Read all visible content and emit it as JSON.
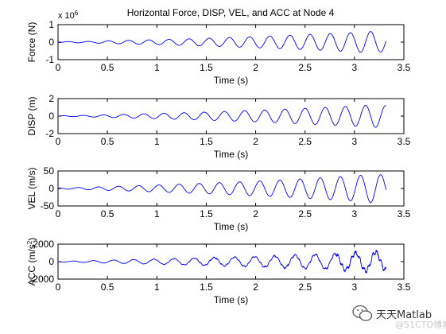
{
  "watermark": {
    "name": "天天Matlab",
    "sub": "@51CTO博客"
  },
  "colors": {
    "line": "#0000ff",
    "axis": "#000000",
    "background": "#ffffff"
  },
  "chart_data": [
    {
      "type": "line",
      "title": "Horizontal Force, DISP, VEL, and ACC at Node 4",
      "xlabel": "Time (s)",
      "ylabel": "Force (N)",
      "exponent_label": "x 10",
      "exponent_power": "6",
      "xlim": [
        0,
        3.5
      ],
      "ylim": [
        -1,
        1
      ],
      "xticks": [
        "0",
        "0.5",
        "1",
        "1.5",
        "2",
        "2.5",
        "3",
        "3.5"
      ],
      "yticks": [
        "-1",
        "0",
        "1"
      ],
      "series": [
        {
          "x": [
            0,
            0.1,
            0.2,
            0.3,
            0.4,
            0.5,
            0.75,
            1.0,
            1.25,
            1.5,
            1.75,
            2.0,
            2.25,
            2.5,
            2.75,
            3.0,
            3.2,
            3.32
          ],
          "amplitude": [
            0.02,
            0.03,
            0.04,
            0.04,
            0.06,
            0.08,
            0.11,
            0.14,
            0.18,
            0.22,
            0.27,
            0.32,
            0.37,
            0.43,
            0.49,
            0.55,
            0.62,
            0.52
          ],
          "frequency_hz": 4.9,
          "phase_rad": -1.57,
          "noise": 0.0
        }
      ]
    },
    {
      "type": "line",
      "xlabel": "Time (s)",
      "ylabel": "DISP (m)",
      "xlim": [
        0,
        3.5
      ],
      "ylim": [
        -2,
        2
      ],
      "xticks": [
        "0",
        "0.5",
        "1",
        "1.5",
        "2",
        "2.5",
        "3",
        "3.5"
      ],
      "yticks": [
        "-2",
        "0",
        "2"
      ],
      "series": [
        {
          "x": [
            0,
            0.1,
            0.2,
            0.3,
            0.4,
            0.5,
            0.75,
            1.0,
            1.25,
            1.5,
            1.75,
            2.0,
            2.25,
            2.5,
            2.75,
            3.0,
            3.2,
            3.32
          ],
          "amplitude": [
            0.04,
            0.05,
            0.07,
            0.09,
            0.12,
            0.15,
            0.22,
            0.3,
            0.38,
            0.46,
            0.56,
            0.66,
            0.78,
            0.9,
            1.02,
            1.15,
            1.3,
            1.2
          ],
          "frequency_hz": 4.9,
          "phase_rad": 0.0,
          "noise": 0.0
        }
      ]
    },
    {
      "type": "line",
      "xlabel": "Time (s)",
      "ylabel": "VEL (m/s)",
      "xlim": [
        0,
        3.5
      ],
      "ylim": [
        -50,
        50
      ],
      "xticks": [
        "0",
        "0.5",
        "1",
        "1.5",
        "2",
        "2.5",
        "3",
        "3.5"
      ],
      "yticks": [
        "-50",
        "0",
        "50"
      ],
      "series": [
        {
          "x": [
            0,
            0.1,
            0.2,
            0.3,
            0.4,
            0.5,
            0.75,
            1.0,
            1.25,
            1.5,
            1.75,
            2.0,
            2.25,
            2.5,
            2.75,
            3.0,
            3.2,
            3.32
          ],
          "amplitude": [
            1.5,
            2,
            3,
            3.5,
            4.5,
            5.5,
            7.5,
            10,
            12.5,
            15,
            18,
            21,
            24,
            28,
            32,
            36,
            41,
            38
          ],
          "frequency_hz": 4.9,
          "phase_rad": 1.57,
          "noise": 0.0
        }
      ]
    },
    {
      "type": "line",
      "xlabel": "Time (s)",
      "ylabel": "ACC (m/s",
      "ylabel_sup": "2",
      "ylabel_end": ")",
      "xlim": [
        0,
        3.5
      ],
      "ylim": [
        -2000,
        2000
      ],
      "xticks": [
        "0",
        "0.5",
        "1",
        "1.5",
        "2",
        "2.5",
        "3",
        "3.5"
      ],
      "yticks": [
        "-2000",
        "0",
        "2000"
      ],
      "series": [
        {
          "x": [
            0,
            0.1,
            0.2,
            0.3,
            0.4,
            0.5,
            0.75,
            1.0,
            1.25,
            1.5,
            1.75,
            2.0,
            2.25,
            2.5,
            2.75,
            3.0,
            3.2,
            3.32
          ],
          "amplitude": [
            40,
            60,
            80,
            100,
            140,
            170,
            230,
            290,
            360,
            430,
            500,
            580,
            660,
            760,
            860,
            980,
            1120,
            900
          ],
          "frequency_hz": 4.9,
          "phase_rad": 3.14,
          "noise": 0.12
        }
      ]
    }
  ]
}
